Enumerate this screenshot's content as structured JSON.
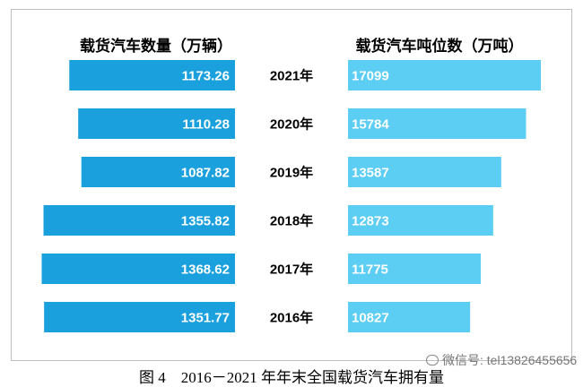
{
  "chart_data": {
    "type": "bar",
    "categories": [
      "2021年",
      "2020年",
      "2019年",
      "2018年",
      "2017年",
      "2016年"
    ],
    "series": [
      {
        "name": "载货汽车数量（万辆）",
        "values": [
          1173.26,
          1110.28,
          1087.82,
          1355.82,
          1368.62,
          1351.77
        ],
        "color": "#1aa0dc"
      },
      {
        "name": "载货汽车吨位数（万吨）",
        "values": [
          17099,
          15784,
          13587,
          12873,
          11775,
          10827
        ],
        "color": "#5ccdf3"
      }
    ]
  },
  "caption": "图 4　2016－2021 年年末全国载货汽车拥有量",
  "watermark": "微信号: tel13826455656",
  "watermark_icon": "wechat-icon"
}
